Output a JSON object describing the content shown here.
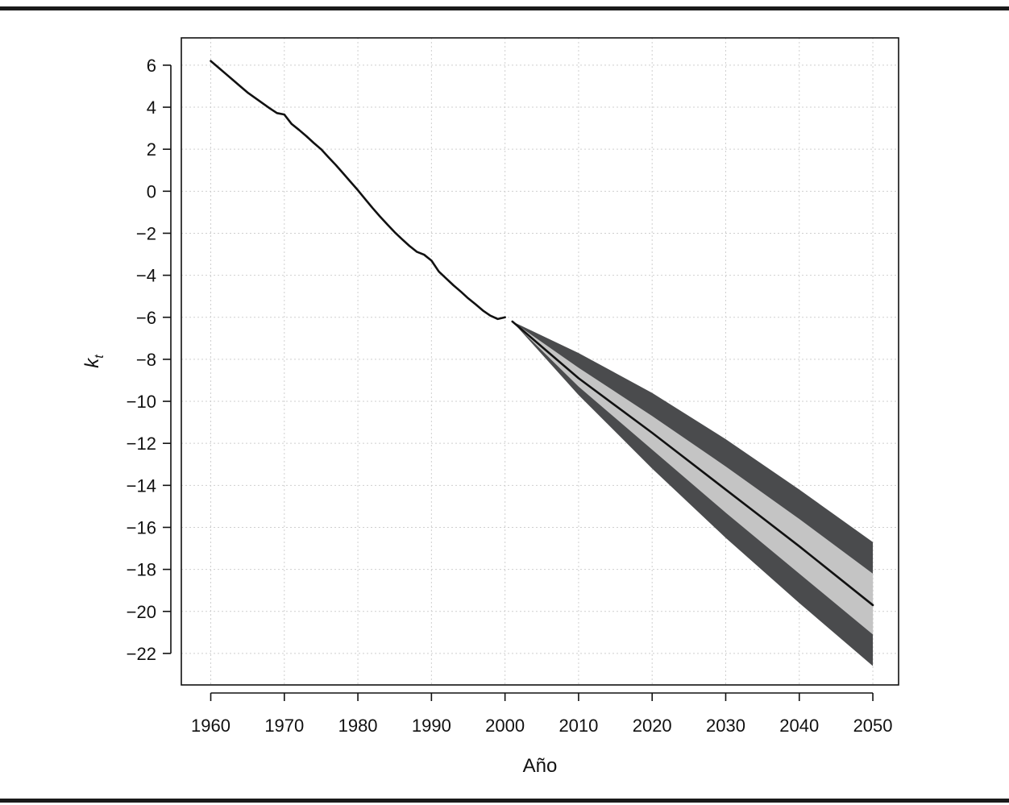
{
  "chart_data": {
    "type": "line",
    "title": "",
    "xlabel": "Año",
    "ylabel": "k",
    "ylabel_subscript": "t",
    "xlim": [
      1956,
      2053.5
    ],
    "ylim": [
      -23.5,
      7.3
    ],
    "xticks": [
      1960,
      1970,
      1980,
      1990,
      2000,
      2010,
      2020,
      2030,
      2040,
      2050
    ],
    "yticks": [
      6,
      4,
      2,
      0,
      -2,
      -4,
      -6,
      -8,
      -10,
      -12,
      -14,
      -16,
      -18,
      -20,
      -22
    ],
    "ytick_labels": [
      "6",
      "4",
      "2",
      "0",
      "−2",
      "−4",
      "−6",
      "−8",
      "−10",
      "−12",
      "−14",
      "−16",
      "−18",
      "−20",
      "−22"
    ],
    "grid": true,
    "series": [
      {
        "role": "observed",
        "color": "#111111",
        "x": [
          1960,
          1961,
          1962,
          1963,
          1964,
          1965,
          1966,
          1967,
          1968,
          1969,
          1970,
          1971,
          1972,
          1973,
          1974,
          1975,
          1976,
          1977,
          1978,
          1979,
          1980,
          1981,
          1982,
          1983,
          1984,
          1985,
          1986,
          1987,
          1988,
          1989,
          1990,
          1991,
          1992,
          1993,
          1994,
          1995,
          1996,
          1997,
          1998,
          1999,
          2000
        ],
        "y": [
          6.2,
          5.9,
          5.6,
          5.3,
          5.0,
          4.7,
          4.45,
          4.2,
          3.95,
          3.72,
          3.65,
          3.2,
          2.92,
          2.62,
          2.3,
          2.0,
          1.62,
          1.25,
          0.85,
          0.45,
          0.05,
          -0.38,
          -0.8,
          -1.2,
          -1.58,
          -1.95,
          -2.28,
          -2.6,
          -2.88,
          -3.02,
          -3.3,
          -3.82,
          -4.15,
          -4.48,
          -4.78,
          -5.1,
          -5.38,
          -5.68,
          -5.92,
          -6.08,
          -6.0
        ]
      },
      {
        "role": "forecast",
        "color": "#111111",
        "x": [
          2001,
          2010,
          2020,
          2030,
          2040,
          2050
        ],
        "y": [
          -6.2,
          -8.9,
          -11.5,
          -14.2,
          -16.9,
          -19.7
        ]
      }
    ],
    "bands": [
      {
        "role": "outer-interval",
        "color": "#4a4b4d",
        "x": [
          2001,
          2010,
          2020,
          2030,
          2040,
          2050
        ],
        "lower": [
          -6.2,
          -9.7,
          -13.2,
          -16.5,
          -19.6,
          -22.6
        ],
        "upper": [
          -6.2,
          -7.7,
          -9.6,
          -11.8,
          -14.2,
          -16.7
        ]
      },
      {
        "role": "inner-interval",
        "color": "#c4c4c4",
        "x": [
          2001,
          2010,
          2020,
          2030,
          2040,
          2050
        ],
        "lower": [
          -6.2,
          -9.3,
          -12.3,
          -15.3,
          -18.2,
          -21.1
        ],
        "upper": [
          -6.2,
          -8.4,
          -10.7,
          -13.1,
          -15.6,
          -18.2
        ]
      }
    ]
  }
}
